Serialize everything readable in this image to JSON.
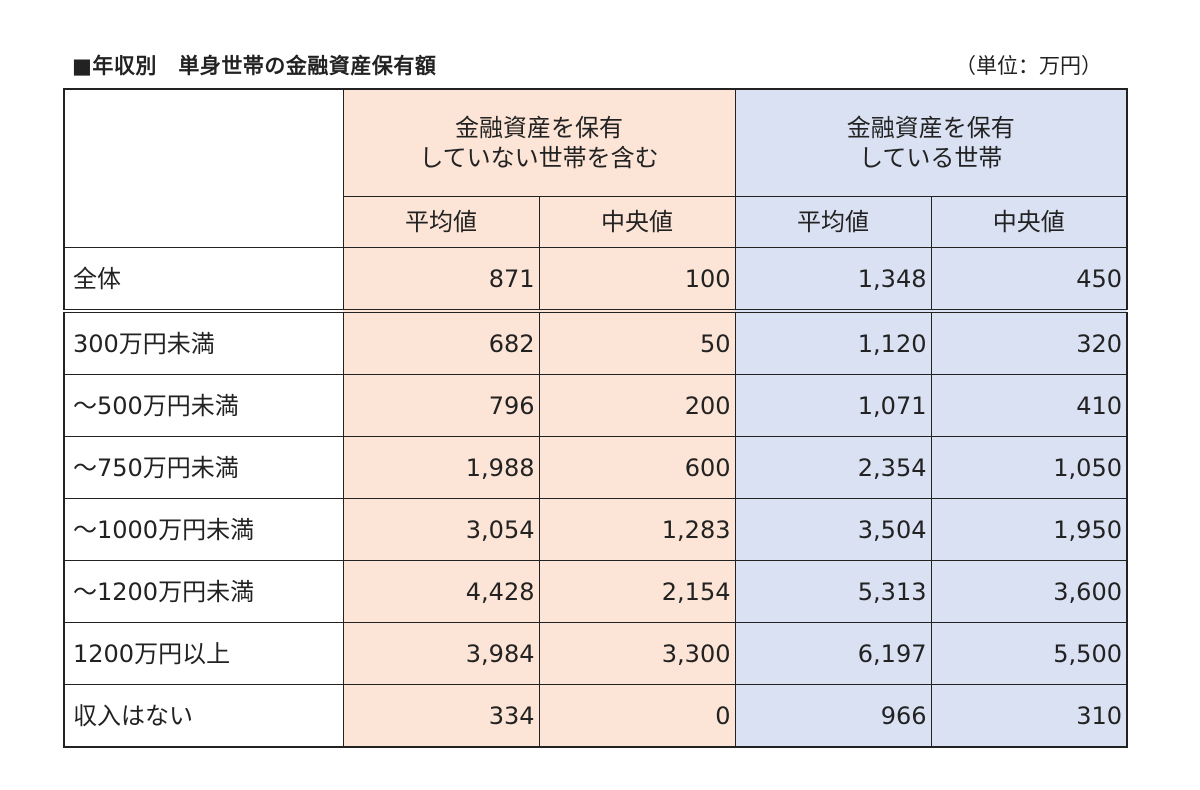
{
  "title": "■年収別　単身世帯の金融資産保有額",
  "unit_note": "（単位：万円）",
  "chart_data": {
    "type": "table",
    "group_headers": [
      {
        "line1": "金融資産を保有",
        "line2": "していない世帯を含む"
      },
      {
        "line1": "金融資産を保有",
        "line2": "している世帯"
      }
    ],
    "sub_headers": [
      "平均値",
      "中央値",
      "平均値",
      "中央値"
    ],
    "rows": [
      {
        "label": "全体",
        "values": [
          "871",
          "100",
          "1,348",
          "450"
        ]
      },
      {
        "label": "300万円未満",
        "values": [
          "682",
          "50",
          "1,120",
          "320"
        ]
      },
      {
        "label": "～500万円未満",
        "values": [
          "796",
          "200",
          "1,071",
          "410"
        ]
      },
      {
        "label": "～750万円未満",
        "values": [
          "1,988",
          "600",
          "2,354",
          "1,050"
        ]
      },
      {
        "label": "～1000万円未満",
        "values": [
          "3,054",
          "1,283",
          "3,504",
          "1,950"
        ]
      },
      {
        "label": "～1200万円未満",
        "values": [
          "4,428",
          "2,154",
          "5,313",
          "3,600"
        ]
      },
      {
        "label": "1200万円以上",
        "values": [
          "3,984",
          "3,300",
          "6,197",
          "5,500"
        ]
      },
      {
        "label": "収入はない",
        "values": [
          "334",
          "0",
          "966",
          "310"
        ]
      }
    ]
  }
}
